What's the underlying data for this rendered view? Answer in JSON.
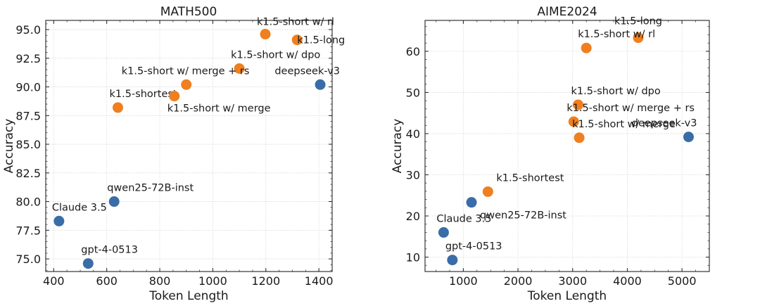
{
  "colors": {
    "orange": "#ef7f1f",
    "blue": "#3a6da8"
  },
  "chart_data": [
    {
      "type": "scatter",
      "title": "MATH500",
      "xlabel": "Token Length",
      "ylabel": "Accuracy",
      "xlim": [
        370,
        1450
      ],
      "ylim": [
        73.9,
        95.8
      ],
      "xticks": [
        400,
        600,
        800,
        1000,
        1200,
        1400
      ],
      "yticks": [
        75.0,
        77.5,
        80.0,
        82.5,
        85.0,
        87.5,
        90.0,
        92.5,
        95.0
      ],
      "ytick_decimals": 1,
      "grid": true,
      "points": [
        {
          "label": "k1.5-short w/ rl",
          "x": 1198,
          "y": 94.6,
          "group": "orange",
          "label_anchor": "start",
          "label_dx": -12,
          "label_dy": -18
        },
        {
          "label": "k1.5-long",
          "x": 1318,
          "y": 94.1,
          "group": "orange",
          "label_anchor": "start",
          "label_dx": 0,
          "label_dy": 0
        },
        {
          "label": "k1.5-short w/ dpo",
          "x": 1100,
          "y": 91.6,
          "group": "orange",
          "label_anchor": "start",
          "label_dx": -12,
          "label_dy": -20
        },
        {
          "label": "k1.5-short w/ merge + rs",
          "x": 900,
          "y": 90.2,
          "group": "orange",
          "label_anchor": "start",
          "label_dx": -92,
          "label_dy": -20
        },
        {
          "label": "k1.5-shortest",
          "x": 642,
          "y": 88.2,
          "group": "orange",
          "label_anchor": "start",
          "label_dx": -12,
          "label_dy": -20
        },
        {
          "label": "k1.5-short w/ merge",
          "x": 855,
          "y": 89.2,
          "group": "orange",
          "label_anchor": "start",
          "label_dx": -10,
          "label_dy": 17
        },
        {
          "label": "deepseek-v3",
          "x": 1405,
          "y": 90.2,
          "group": "blue",
          "label_anchor": "end",
          "label_dx": 28,
          "label_dy": -20
        },
        {
          "label": "qwen25-72B-inst",
          "x": 628,
          "y": 80.0,
          "group": "blue",
          "label_anchor": "start",
          "label_dx": -10,
          "label_dy": -20
        },
        {
          "label": "Claude 3.5",
          "x": 420,
          "y": 78.3,
          "group": "blue",
          "label_anchor": "start",
          "label_dx": -10,
          "label_dy": -20
        },
        {
          "label": "gpt-4-0513",
          "x": 530,
          "y": 74.6,
          "group": "blue",
          "label_anchor": "start",
          "label_dx": -10,
          "label_dy": -20
        }
      ]
    },
    {
      "type": "scatter",
      "title": "AIME2024",
      "xlabel": "Token Length",
      "ylabel": "Accuracy",
      "xlim": [
        300,
        5500
      ],
      "ylim": [
        6.5,
        67.5
      ],
      "xticks": [
        1000,
        2000,
        3000,
        4000,
        5000
      ],
      "yticks": [
        10,
        20,
        30,
        40,
        50,
        60
      ],
      "ytick_decimals": 0,
      "grid": true,
      "points": [
        {
          "label": "k1.5-long",
          "x": 4200,
          "y": 63.3,
          "group": "orange",
          "label_anchor": "middle",
          "label_dx": 0,
          "label_dy": -24
        },
        {
          "label": "k1.5-short w/ rl",
          "x": 3250,
          "y": 60.8,
          "group": "orange",
          "label_anchor": "start",
          "label_dx": -12,
          "label_dy": -20
        },
        {
          "label": "k1.5-short w/ dpo",
          "x": 3100,
          "y": 47.0,
          "group": "orange",
          "label_anchor": "start",
          "label_dx": -10,
          "label_dy": -20
        },
        {
          "label": "k1.5-short w/ merge + rs",
          "x": 3020,
          "y": 42.9,
          "group": "orange",
          "label_anchor": "start",
          "label_dx": -10,
          "label_dy": -20
        },
        {
          "label": "k1.5-short w/ merge",
          "x": 3120,
          "y": 39.0,
          "group": "orange",
          "label_anchor": "start",
          "label_dx": -10,
          "label_dy": -20
        },
        {
          "label": "k1.5-shortest",
          "x": 1450,
          "y": 25.9,
          "group": "orange",
          "label_anchor": "start",
          "label_dx": 12,
          "label_dy": -20
        },
        {
          "label": "deepseek-v3",
          "x": 5120,
          "y": 39.2,
          "group": "blue",
          "label_anchor": "end",
          "label_dx": 12,
          "label_dy": -20
        },
        {
          "label": "qwen25-72B-inst",
          "x": 1150,
          "y": 23.3,
          "group": "blue",
          "label_anchor": "start",
          "label_dx": 12,
          "label_dy": 18
        },
        {
          "label": "Claude 3.5",
          "x": 640,
          "y": 16.0,
          "group": "blue",
          "label_anchor": "start",
          "label_dx": -10,
          "label_dy": -20
        },
        {
          "label": "gpt-4-0513",
          "x": 800,
          "y": 9.3,
          "group": "blue",
          "label_anchor": "start",
          "label_dx": -10,
          "label_dy": -20
        }
      ]
    }
  ]
}
